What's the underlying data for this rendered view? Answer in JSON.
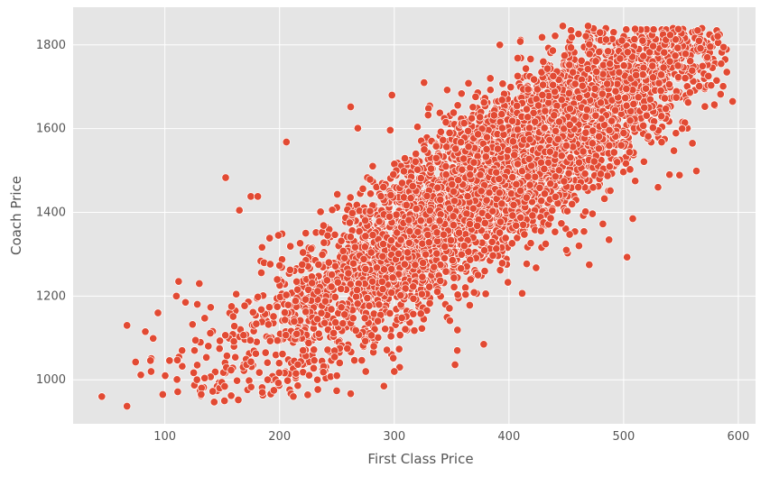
{
  "chart_data": {
    "type": "scatter",
    "title": "",
    "xlabel": "First Class Price",
    "ylabel": "Coach Price",
    "xlim": [
      20,
      615
    ],
    "ylim": [
      895,
      1890
    ],
    "xticks": [
      100,
      200,
      300,
      400,
      500,
      600
    ],
    "yticks": [
      1000,
      1200,
      1400,
      1600,
      1800
    ],
    "grid": true,
    "legend": "none",
    "colors": {
      "background": "#e5e5e5",
      "grid": "#ffffff",
      "point_fill": "#e24a33",
      "point_edge": "#ffffff"
    },
    "density_model": {
      "n_points": 5000,
      "x_center": 390,
      "x_spread": 105,
      "x_min": 60,
      "x_max": 590,
      "y_intercept": 742,
      "y_slope": 1.92,
      "y_spread": 95,
      "y_min": 960,
      "y_max": 1840
    },
    "points": [
      {
        "x": 45,
        "y": 960
      },
      {
        "x": 67,
        "y": 937
      },
      {
        "x": 67,
        "y": 1130
      },
      {
        "x": 83,
        "y": 1115
      },
      {
        "x": 88,
        "y": 1020
      },
      {
        "x": 94,
        "y": 1160
      },
      {
        "x": 110,
        "y": 1200
      },
      {
        "x": 112,
        "y": 1235
      },
      {
        "x": 115,
        "y": 1070
      },
      {
        "x": 118,
        "y": 1185
      },
      {
        "x": 130,
        "y": 1230
      },
      {
        "x": 143,
        "y": 947
      },
      {
        "x": 152,
        "y": 950
      },
      {
        "x": 153,
        "y": 1483
      },
      {
        "x": 164,
        "y": 952
      },
      {
        "x": 165,
        "y": 1405
      },
      {
        "x": 175,
        "y": 1438
      },
      {
        "x": 181,
        "y": 1438
      },
      {
        "x": 185,
        "y": 970
      },
      {
        "x": 195,
        "y": 975
      },
      {
        "x": 206,
        "y": 1568
      },
      {
        "x": 212,
        "y": 960
      },
      {
        "x": 262,
        "y": 967
      },
      {
        "x": 262,
        "y": 1652
      },
      {
        "x": 291,
        "y": 985
      },
      {
        "x": 298,
        "y": 1680
      },
      {
        "x": 326,
        "y": 1710
      },
      {
        "x": 378,
        "y": 1085
      },
      {
        "x": 392,
        "y": 1800
      },
      {
        "x": 447,
        "y": 1845
      },
      {
        "x": 469,
        "y": 1845
      },
      {
        "x": 503,
        "y": 1293
      },
      {
        "x": 508,
        "y": 1385
      },
      {
        "x": 510,
        "y": 1838
      },
      {
        "x": 560,
        "y": 1565
      },
      {
        "x": 573,
        "y": 1770
      },
      {
        "x": 585,
        "y": 1755
      },
      {
        "x": 590,
        "y": 1735
      },
      {
        "x": 595,
        "y": 1665
      },
      {
        "x": 470,
        "y": 1275
      },
      {
        "x": 450,
        "y": 1310
      },
      {
        "x": 530,
        "y": 1460
      },
      {
        "x": 540,
        "y": 1490
      },
      {
        "x": 551,
        "y": 1600
      },
      {
        "x": 488,
        "y": 1755
      },
      {
        "x": 430,
        "y": 1760
      },
      {
        "x": 355,
        "y": 1070
      },
      {
        "x": 300,
        "y": 1020
      },
      {
        "x": 250,
        "y": 1010
      },
      {
        "x": 233,
        "y": 1000
      }
    ]
  }
}
